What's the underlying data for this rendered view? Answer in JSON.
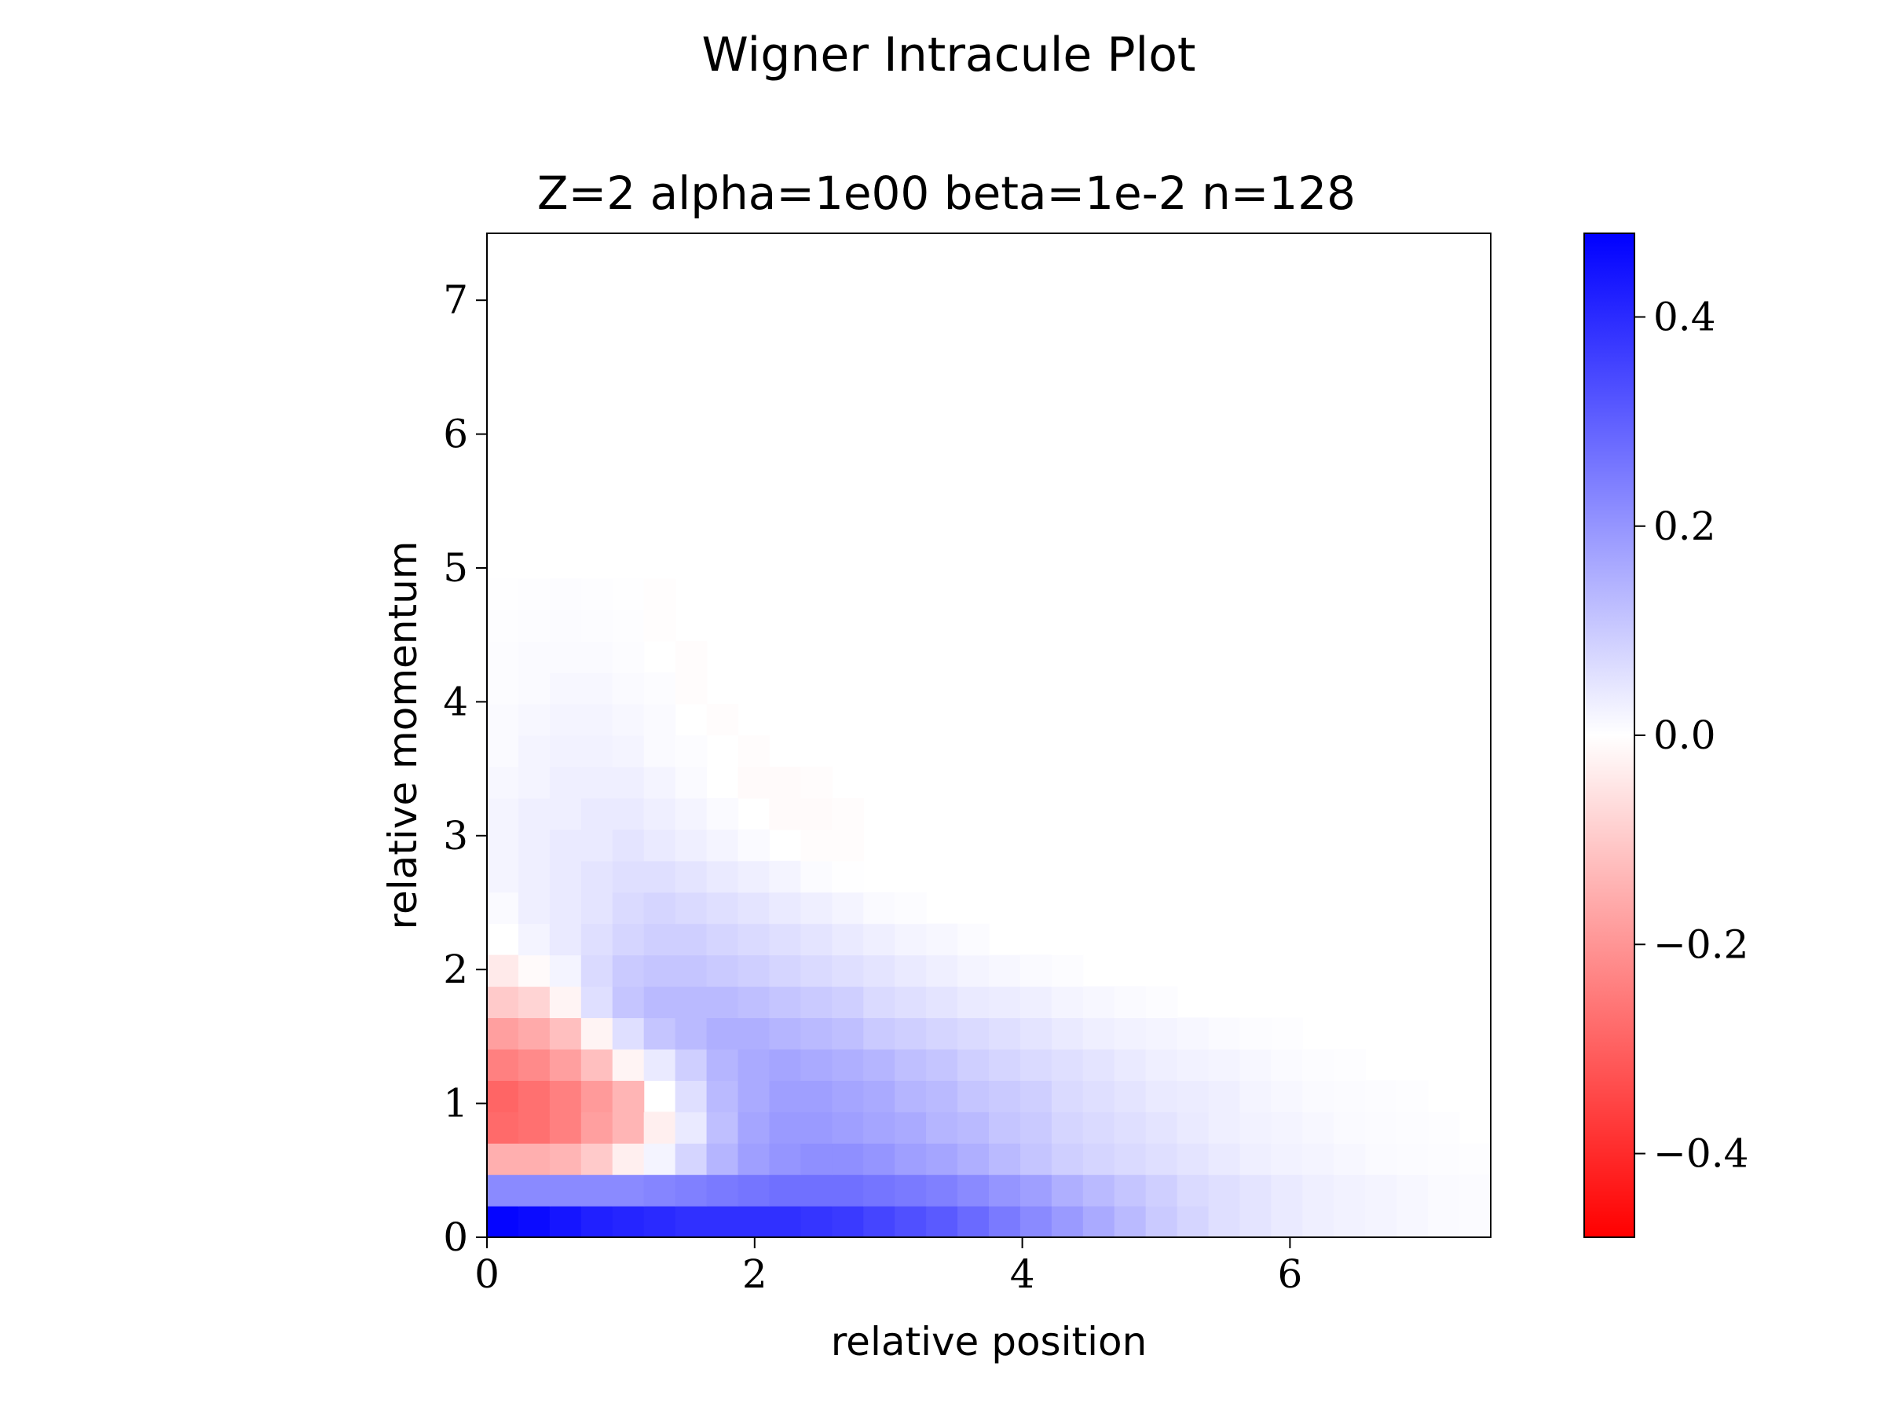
{
  "chart_data": {
    "type": "heatmap",
    "suptitle": "Wigner Intracule Plot",
    "title": "Z=2 alpha=1e00 beta=1e-2 n=128",
    "xlabel": "relative position",
    "ylabel": "relative momentum",
    "xlim": [
      0,
      7.5
    ],
    "ylim": [
      0,
      7.5
    ],
    "xticks": [
      0,
      2,
      4,
      6
    ],
    "xtick_labels": [
      "0",
      "2",
      "4",
      "6"
    ],
    "yticks": [
      0,
      1,
      2,
      3,
      4,
      5,
      6,
      7
    ],
    "ytick_labels": [
      "0",
      "1",
      "2",
      "3",
      "4",
      "5",
      "6",
      "7"
    ],
    "grid": false,
    "cell_size": 0.234375,
    "colormap": "bwr_r",
    "colormap_colors": {
      "negative": "#ff0000",
      "zero": "#ffffff",
      "positive": "#0000ff"
    },
    "colorbar": {
      "range": [
        -0.48,
        0.48
      ],
      "ticks": [
        -0.4,
        -0.2,
        0.0,
        0.2,
        0.4
      ],
      "tick_labels": [
        "−0.4",
        "−0.2",
        "0.0",
        "0.2",
        "0.4"
      ]
    },
    "rows_note": "values[0] is the bottom row (momentum 0–0.234); each row lists cells from position 0 rightward",
    "values": [
      [
        0.47,
        0.46,
        0.44,
        0.42,
        0.41,
        0.4,
        0.39,
        0.39,
        0.39,
        0.39,
        0.38,
        0.37,
        0.35,
        0.33,
        0.31,
        0.28,
        0.25,
        0.22,
        0.19,
        0.16,
        0.13,
        0.1,
        0.08,
        0.06,
        0.05,
        0.04,
        0.03,
        0.025,
        0.02,
        0.015,
        0.01,
        0.008,
        0.006,
        0.004,
        0.002
      ],
      [
        0.22,
        0.22,
        0.22,
        0.22,
        0.22,
        0.23,
        0.24,
        0.25,
        0.26,
        0.27,
        0.27,
        0.27,
        0.26,
        0.25,
        0.24,
        0.22,
        0.2,
        0.18,
        0.15,
        0.13,
        0.11,
        0.09,
        0.07,
        0.06,
        0.05,
        0.04,
        0.03,
        0.025,
        0.02,
        0.015,
        0.01,
        0.008,
        0.005,
        0.003,
        0.001
      ],
      [
        -0.15,
        -0.15,
        -0.14,
        -0.1,
        -0.03,
        0.02,
        0.08,
        0.14,
        0.18,
        0.2,
        0.21,
        0.21,
        0.2,
        0.18,
        0.17,
        0.15,
        0.13,
        0.11,
        0.09,
        0.08,
        0.07,
        0.06,
        0.05,
        0.04,
        0.03,
        0.025,
        0.02,
        0.015,
        0.01,
        0.008,
        0.005,
        0.003,
        0.002
      ],
      [
        -0.28,
        -0.27,
        -0.24,
        -0.18,
        -0.14,
        -0.03,
        0.04,
        0.12,
        0.17,
        0.19,
        0.19,
        0.18,
        0.17,
        0.16,
        0.14,
        0.13,
        0.11,
        0.1,
        0.08,
        0.07,
        0.06,
        0.05,
        0.04,
        0.03,
        0.025,
        0.02,
        0.015,
        0.01,
        0.008,
        0.005,
        0.003
      ],
      [
        -0.29,
        -0.27,
        -0.24,
        -0.19,
        -0.14,
        0.0,
        0.06,
        0.13,
        0.16,
        0.18,
        0.18,
        0.17,
        0.16,
        0.14,
        0.13,
        0.11,
        0.1,
        0.09,
        0.07,
        0.06,
        0.05,
        0.04,
        0.035,
        0.03,
        0.02,
        0.015,
        0.01,
        0.008,
        0.005,
        0.003
      ],
      [
        -0.24,
        -0.22,
        -0.18,
        -0.12,
        -0.02,
        0.04,
        0.09,
        0.14,
        0.16,
        0.17,
        0.16,
        0.15,
        0.14,
        0.12,
        0.11,
        0.09,
        0.08,
        0.07,
        0.06,
        0.05,
        0.04,
        0.03,
        0.025,
        0.02,
        0.015,
        0.01,
        0.006,
        0.003
      ],
      [
        -0.18,
        -0.16,
        -0.12,
        -0.02,
        0.06,
        0.11,
        0.13,
        0.15,
        0.15,
        0.14,
        0.13,
        0.12,
        0.1,
        0.09,
        0.08,
        0.07,
        0.06,
        0.05,
        0.04,
        0.03,
        0.025,
        0.02,
        0.015,
        0.01,
        0.006,
        0.003
      ],
      [
        -0.1,
        -0.08,
        -0.02,
        0.06,
        0.11,
        0.13,
        0.13,
        0.13,
        0.12,
        0.11,
        0.1,
        0.09,
        0.07,
        0.06,
        0.05,
        0.04,
        0.035,
        0.03,
        0.02,
        0.015,
        0.01,
        0.005
      ],
      [
        -0.04,
        -0.01,
        0.02,
        0.07,
        0.1,
        0.11,
        0.11,
        0.1,
        0.09,
        0.08,
        0.07,
        0.06,
        0.05,
        0.04,
        0.03,
        0.02,
        0.015,
        0.01,
        0.005
      ],
      [
        0.0,
        0.02,
        0.04,
        0.06,
        0.08,
        0.09,
        0.09,
        0.08,
        0.07,
        0.06,
        0.05,
        0.04,
        0.03,
        0.02,
        0.015,
        0.008
      ],
      [
        0.01,
        0.03,
        0.04,
        0.05,
        0.07,
        0.08,
        0.07,
        0.06,
        0.05,
        0.04,
        0.03,
        0.02,
        0.01,
        0.005
      ],
      [
        0.02,
        0.03,
        0.04,
        0.05,
        0.06,
        0.06,
        0.05,
        0.04,
        0.03,
        0.02,
        0.008,
        0.002
      ],
      [
        0.02,
        0.03,
        0.04,
        0.04,
        0.05,
        0.04,
        0.03,
        0.02,
        0.01,
        0.0,
        -0.005,
        -0.005
      ],
      [
        0.02,
        0.03,
        0.03,
        0.04,
        0.04,
        0.03,
        0.02,
        0.01,
        0.0,
        -0.01,
        -0.01,
        -0.005
      ],
      [
        0.015,
        0.02,
        0.03,
        0.03,
        0.03,
        0.02,
        0.01,
        0.0,
        -0.01,
        -0.01,
        -0.005
      ],
      [
        0.01,
        0.02,
        0.025,
        0.025,
        0.02,
        0.01,
        0.005,
        0.0,
        -0.005
      ],
      [
        0.01,
        0.015,
        0.02,
        0.02,
        0.015,
        0.01,
        0.0,
        -0.005
      ],
      [
        0.005,
        0.01,
        0.015,
        0.015,
        0.01,
        0.005,
        -0.005
      ],
      [
        0.005,
        0.01,
        0.01,
        0.01,
        0.005,
        0.0,
        -0.005
      ],
      [
        0.003,
        0.006,
        0.008,
        0.006,
        0.003,
        -0.003
      ],
      [
        0.002,
        0.004,
        0.005,
        0.004,
        0.002,
        -0.003
      ]
    ]
  }
}
